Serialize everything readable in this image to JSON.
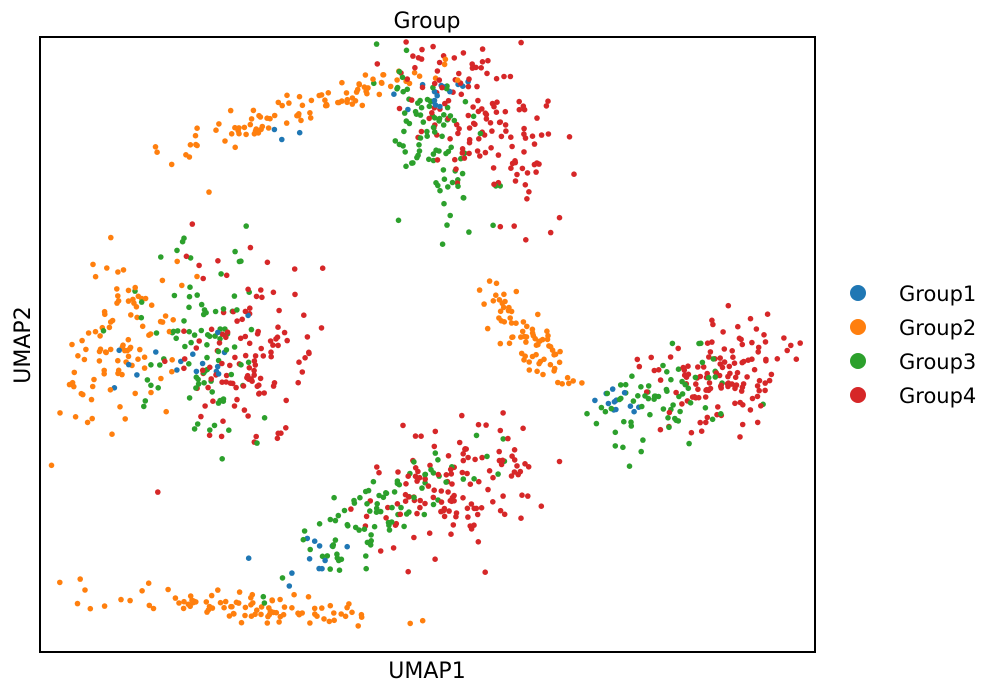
{
  "chart_data": {
    "type": "scatter",
    "title": "Group",
    "xlabel": "UMAP1",
    "ylabel": "UMAP2",
    "xlim": [
      0,
      10
    ],
    "ylim": [
      0,
      10
    ],
    "grid": false,
    "ticks": false,
    "legend_position": "right",
    "series": [
      {
        "name": "Group1",
        "color": "#1f77b4",
        "clusters": [
          {
            "cx": 5.0,
            "cy": 9.05,
            "sx": 0.32,
            "sy": 0.18,
            "rot": 0,
            "n": 16
          },
          {
            "cx": 1.9,
            "cy": 4.8,
            "sx": 0.55,
            "sy": 0.45,
            "rot": 0,
            "n": 16
          },
          {
            "cx": 7.45,
            "cy": 4.06,
            "sx": 0.22,
            "sy": 0.1,
            "rot": 0,
            "n": 12
          },
          {
            "cx": 3.4,
            "cy": 1.55,
            "sx": 0.45,
            "sy": 0.25,
            "rot": 35,
            "n": 12
          },
          {
            "cx": 3.1,
            "cy": 8.4,
            "sx": 0.12,
            "sy": 0.05,
            "rot": 0,
            "n": 3
          }
        ]
      },
      {
        "name": "Group2",
        "color": "#ff7f0e",
        "clusters": [
          {
            "cx": 3.45,
            "cy": 8.85,
            "sx": 1.05,
            "sy": 0.12,
            "rot": 22,
            "n": 95
          },
          {
            "cx": 1.05,
            "cy": 5.1,
            "sx": 0.35,
            "sy": 0.85,
            "rot": -20,
            "n": 100
          },
          {
            "cx": 6.3,
            "cy": 5.15,
            "sx": 0.55,
            "sy": 0.15,
            "rot": -52,
            "n": 75
          },
          {
            "cx": 2.5,
            "cy": 0.77,
            "sx": 1.0,
            "sy": 0.13,
            "rot": -4,
            "n": 95
          }
        ]
      },
      {
        "name": "Group3",
        "color": "#2ca02c",
        "clusters": [
          {
            "cx": 5.1,
            "cy": 8.25,
            "sx": 0.3,
            "sy": 0.7,
            "rot": 15,
            "n": 90
          },
          {
            "cx": 2.1,
            "cy": 4.95,
            "sx": 0.5,
            "sy": 0.8,
            "rot": 0,
            "n": 90
          },
          {
            "cx": 8.1,
            "cy": 4.1,
            "sx": 0.55,
            "sy": 0.35,
            "rot": 25,
            "n": 70
          },
          {
            "cx": 4.4,
            "cy": 2.3,
            "sx": 0.8,
            "sy": 0.25,
            "rot": 40,
            "n": 90
          }
        ]
      },
      {
        "name": "Group4",
        "color": "#d62728",
        "clusters": [
          {
            "cx": 5.7,
            "cy": 8.75,
            "sx": 0.4,
            "sy": 0.75,
            "rot": 25,
            "n": 150
          },
          {
            "cx": 2.6,
            "cy": 4.8,
            "sx": 0.45,
            "sy": 0.75,
            "rot": 0,
            "n": 120
          },
          {
            "cx": 8.85,
            "cy": 4.5,
            "sx": 0.5,
            "sy": 0.4,
            "rot": 25,
            "n": 130
          },
          {
            "cx": 5.35,
            "cy": 2.65,
            "sx": 0.6,
            "sy": 0.45,
            "rot": 40,
            "n": 130
          }
        ]
      }
    ]
  }
}
